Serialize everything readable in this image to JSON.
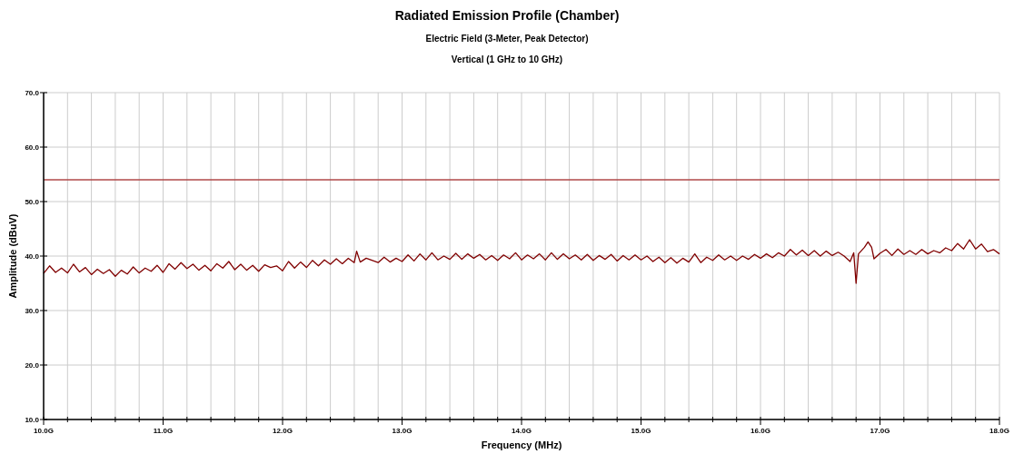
{
  "chart_data": {
    "type": "line",
    "title": "Radiated Emission Profile (Chamber)",
    "subtitle": "Electric Field (3-Meter, Peak Detector)",
    "annotations": [
      "Vertical (1 GHz to 10 GHz)"
    ],
    "xlabel": "Frequency (MHz)",
    "ylabel": "Amplitude (dBuV)",
    "xlim": [
      10,
      18
    ],
    "ylim": [
      10,
      70
    ],
    "xticks": [
      {
        "value": 10,
        "label": "10.0G"
      },
      {
        "value": 10.2,
        "label": null
      },
      {
        "value": 10.4,
        "label": null
      },
      {
        "value": 10.6,
        "label": null
      },
      {
        "value": 10.8,
        "label": null
      },
      {
        "value": 11,
        "label": "11.0G"
      },
      {
        "value": 11.2,
        "label": null
      },
      {
        "value": 11.4,
        "label": null
      },
      {
        "value": 11.6,
        "label": null
      },
      {
        "value": 11.8,
        "label": null
      },
      {
        "value": 12,
        "label": "12.0G"
      },
      {
        "value": 12.2,
        "label": null
      },
      {
        "value": 12.4,
        "label": null
      },
      {
        "value": 12.6,
        "label": null
      },
      {
        "value": 12.8,
        "label": null
      },
      {
        "value": 13,
        "label": "13.0G"
      },
      {
        "value": 13.2,
        "label": null
      },
      {
        "value": 13.4,
        "label": null
      },
      {
        "value": 13.6,
        "label": null
      },
      {
        "value": 13.8,
        "label": null
      },
      {
        "value": 14,
        "label": "14.0G"
      },
      {
        "value": 14.2,
        "label": null
      },
      {
        "value": 14.4,
        "label": null
      },
      {
        "value": 14.6,
        "label": null
      },
      {
        "value": 14.8,
        "label": null
      },
      {
        "value": 15,
        "label": "15.0G"
      },
      {
        "value": 15.2,
        "label": null
      },
      {
        "value": 15.4,
        "label": null
      },
      {
        "value": 15.6,
        "label": null
      },
      {
        "value": 15.8,
        "label": null
      },
      {
        "value": 16,
        "label": "16.0G"
      },
      {
        "value": 16.2,
        "label": null
      },
      {
        "value": 16.4,
        "label": null
      },
      {
        "value": 16.6,
        "label": null
      },
      {
        "value": 16.8,
        "label": null
      },
      {
        "value": 17,
        "label": "17.0G"
      },
      {
        "value": 17.2,
        "label": null
      },
      {
        "value": 17.4,
        "label": null
      },
      {
        "value": 17.6,
        "label": null
      },
      {
        "value": 17.8,
        "label": null
      },
      {
        "value": 18,
        "label": "18.0G"
      }
    ],
    "yticks": [
      {
        "value": 10,
        "label": "10.0"
      },
      {
        "value": 20,
        "label": "20.0"
      },
      {
        "value": 30,
        "label": "30.0"
      },
      {
        "value": 40,
        "label": "40.0"
      },
      {
        "value": 50,
        "label": "50.0"
      },
      {
        "value": 60,
        "label": "60.0"
      },
      {
        "value": 70,
        "label": "70.0"
      }
    ],
    "grid": true,
    "marker": "none",
    "line_style": "solid",
    "ref_lines": [
      {
        "axis": "y",
        "value": 54,
        "color": "#b04848"
      }
    ],
    "series": [
      {
        "color": "#800000",
        "x": [
          10.0,
          10.05,
          10.1,
          10.15,
          10.2,
          10.25,
          10.3,
          10.35,
          10.4,
          10.45,
          10.5,
          10.55,
          10.6,
          10.65,
          10.7,
          10.75,
          10.8,
          10.85,
          10.9,
          10.95,
          11.0,
          11.05,
          11.1,
          11.15,
          11.2,
          11.25,
          11.3,
          11.35,
          11.4,
          11.45,
          11.5,
          11.55,
          11.6,
          11.65,
          11.7,
          11.75,
          11.8,
          11.85,
          11.9,
          11.95,
          12.0,
          12.05,
          12.1,
          12.15,
          12.2,
          12.25,
          12.3,
          12.35,
          12.4,
          12.45,
          12.5,
          12.55,
          12.6,
          12.62,
          12.65,
          12.7,
          12.8,
          12.85,
          12.9,
          12.95,
          13.0,
          13.05,
          13.1,
          13.15,
          13.2,
          13.25,
          13.3,
          13.35,
          13.4,
          13.45,
          13.5,
          13.55,
          13.6,
          13.65,
          13.7,
          13.75,
          13.8,
          13.85,
          13.9,
          13.95,
          14.0,
          14.05,
          14.1,
          14.15,
          14.2,
          14.25,
          14.3,
          14.35,
          14.4,
          14.45,
          14.5,
          14.55,
          14.6,
          14.65,
          14.7,
          14.75,
          14.8,
          14.85,
          14.9,
          14.95,
          15.0,
          15.05,
          15.1,
          15.15,
          15.2,
          15.25,
          15.3,
          15.35,
          15.4,
          15.45,
          15.5,
          15.55,
          15.6,
          15.65,
          15.7,
          15.75,
          15.8,
          15.85,
          15.9,
          15.95,
          16.0,
          16.05,
          16.1,
          16.15,
          16.2,
          16.25,
          16.3,
          16.35,
          16.4,
          16.45,
          16.5,
          16.55,
          16.6,
          16.65,
          16.7,
          16.75,
          16.78,
          16.8,
          16.82,
          16.87,
          16.9,
          16.93,
          16.95,
          17.0,
          17.05,
          17.1,
          17.15,
          17.2,
          17.25,
          17.3,
          17.35,
          17.4,
          17.45,
          17.5,
          17.55,
          17.6,
          17.65,
          17.7,
          17.75,
          17.8,
          17.85,
          17.9,
          17.95,
          18.0
        ],
        "values": [
          36.8,
          38.2,
          37.0,
          37.8,
          36.9,
          38.5,
          37.1,
          37.9,
          36.6,
          37.6,
          36.8,
          37.5,
          36.3,
          37.4,
          36.7,
          38.0,
          36.9,
          37.8,
          37.2,
          38.3,
          37.0,
          38.6,
          37.6,
          38.8,
          37.7,
          38.5,
          37.4,
          38.3,
          37.3,
          38.6,
          37.8,
          39.0,
          37.5,
          38.5,
          37.4,
          38.3,
          37.2,
          38.4,
          37.9,
          38.2,
          37.3,
          39.0,
          37.8,
          38.9,
          37.9,
          39.2,
          38.2,
          39.3,
          38.5,
          39.5,
          38.6,
          39.6,
          38.8,
          40.9,
          38.9,
          39.6,
          38.8,
          39.8,
          38.9,
          39.6,
          39.0,
          40.2,
          39.1,
          40.4,
          39.3,
          40.6,
          39.3,
          40.0,
          39.4,
          40.5,
          39.4,
          40.4,
          39.6,
          40.3,
          39.3,
          40.1,
          39.2,
          40.2,
          39.5,
          40.6,
          39.3,
          40.2,
          39.5,
          40.4,
          39.3,
          40.6,
          39.4,
          40.4,
          39.5,
          40.2,
          39.3,
          40.3,
          39.2,
          40.1,
          39.4,
          40.3,
          39.1,
          40.1,
          39.3,
          40.2,
          39.3,
          40.0,
          39.0,
          39.8,
          38.8,
          39.7,
          38.7,
          39.6,
          38.9,
          40.4,
          38.8,
          39.8,
          39.2,
          40.2,
          39.3,
          40.0,
          39.2,
          40.0,
          39.4,
          40.3,
          39.6,
          40.4,
          39.7,
          40.6,
          40.0,
          41.2,
          40.2,
          41.1,
          40.1,
          41.0,
          40.0,
          40.9,
          40.1,
          40.7,
          40.0,
          39.0,
          40.6,
          35.0,
          40.4,
          41.6,
          42.6,
          41.6,
          39.5,
          40.5,
          41.2,
          40.1,
          41.3,
          40.3,
          41.0,
          40.3,
          41.2,
          40.4,
          41.0,
          40.6,
          41.5,
          41.0,
          42.3,
          41.3,
          43.0,
          41.3,
          42.2,
          40.8,
          41.2,
          40.4
        ]
      }
    ]
  }
}
